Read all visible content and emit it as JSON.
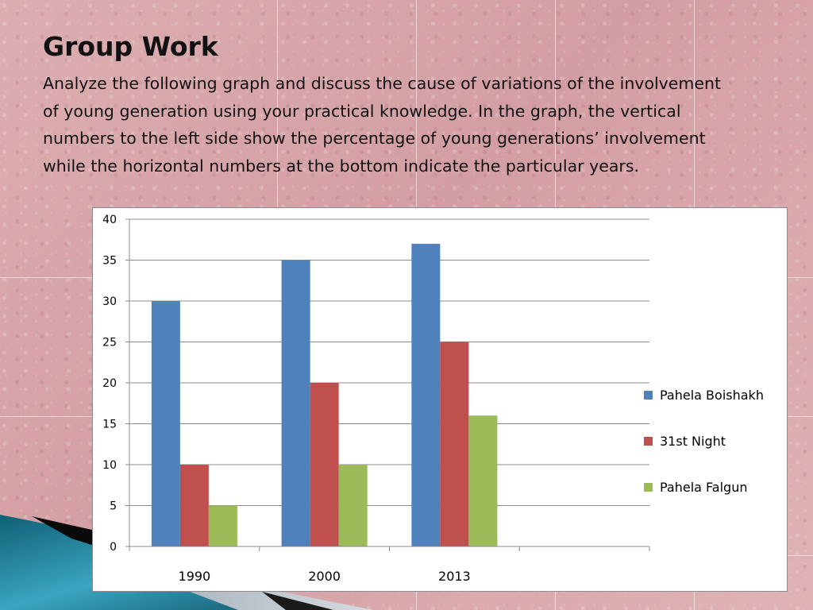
{
  "slide": {
    "title": "Group Work",
    "body": "Analyze the following graph and discuss the cause of variations of the involvement of young generation using your practical knowledge. In the graph, the vertical numbers  to the left side show the percentage of young generations’ involvement while the horizontal numbers at the bottom indicate the particular years."
  },
  "chart_data": {
    "type": "bar",
    "title": "",
    "xlabel": "",
    "ylabel": "",
    "categories": [
      "1990",
      "2000",
      "2013",
      ""
    ],
    "ylim": [
      0,
      40
    ],
    "ytick_step": 5,
    "grid": true,
    "legend_position": "right",
    "series": [
      {
        "name": "Pahela Boishakh",
        "color": "#4f81bd",
        "values": [
          30,
          35,
          37,
          null
        ]
      },
      {
        "name": "31st Night",
        "color": "#c0504d",
        "values": [
          10,
          20,
          25,
          null
        ]
      },
      {
        "name": "Pahela Falgun",
        "color": "#9bbb59",
        "values": [
          5,
          10,
          16,
          null
        ]
      }
    ]
  }
}
